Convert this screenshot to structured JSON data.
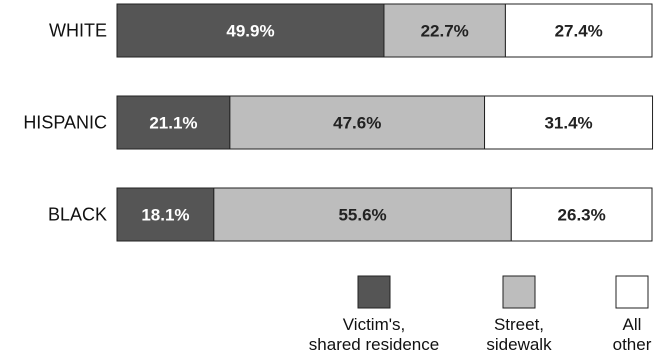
{
  "chart_data": {
    "type": "bar",
    "orientation": "horizontal",
    "stacked": true,
    "categories": [
      "WHITE",
      "HISPANIC",
      "BLACK"
    ],
    "series": [
      {
        "name": "Victim's, shared residence",
        "legend_lines": [
          "Victim's,",
          "shared residence"
        ],
        "values": [
          49.9,
          21.1,
          18.1
        ],
        "labels": [
          "49.9%",
          "21.1%",
          "18.1%"
        ],
        "color": "#555555",
        "label_color": "#ffffff"
      },
      {
        "name": "Street, sidewalk",
        "legend_lines": [
          "Street,",
          "sidewalk"
        ],
        "values": [
          22.7,
          47.6,
          55.6
        ],
        "labels": [
          "22.7%",
          "47.6%",
          "55.6%"
        ],
        "color": "#bdbdbd",
        "label_color": "#222222"
      },
      {
        "name": "All other",
        "legend_lines": [
          "All",
          "other"
        ],
        "values": [
          27.4,
          31.4,
          26.3
        ],
        "labels": [
          "27.4%",
          "31.4%",
          "26.3%"
        ],
        "color": "#ffffff",
        "label_color": "#222222"
      }
    ],
    "xlim": [
      0,
      100
    ],
    "grid": false,
    "legend": "bottom-right",
    "title": "",
    "xlabel": "",
    "ylabel": ""
  }
}
